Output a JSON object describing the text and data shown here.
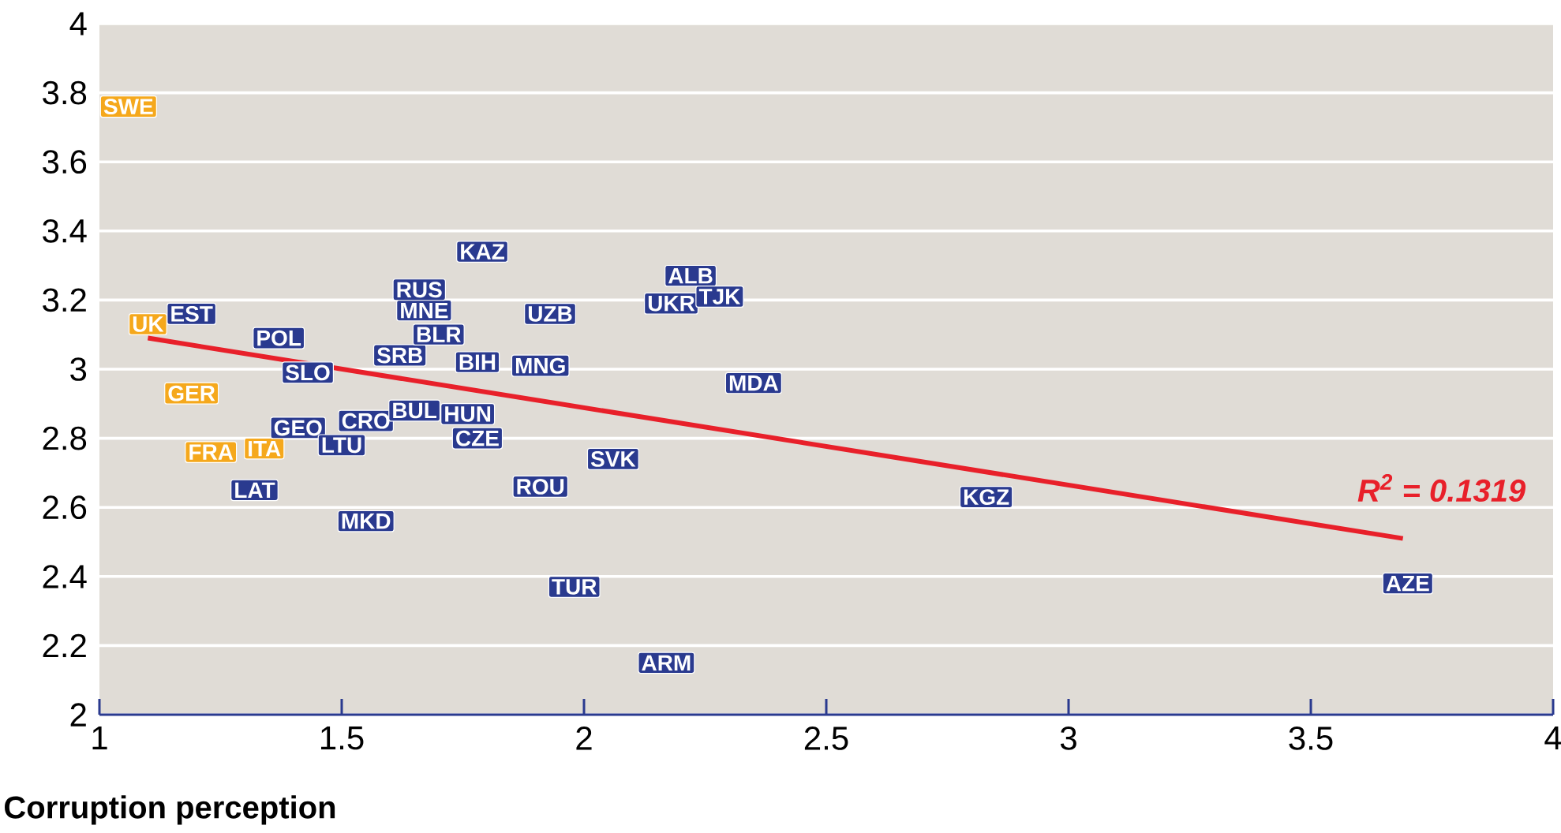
{
  "chart_data": {
    "type": "scatter",
    "xlabel": "Corruption perception",
    "xlim": [
      1,
      4
    ],
    "ylim": [
      2,
      4
    ],
    "xticks": [
      1,
      1.5,
      2,
      2.5,
      3,
      3.5,
      4
    ],
    "yticks": [
      2,
      2.2,
      2.4,
      2.6,
      2.8,
      3,
      3.2,
      3.4,
      3.6,
      3.8,
      4
    ],
    "grid": "y",
    "series": [
      {
        "color": "#f5a81c",
        "x": [
          1.06,
          1.1,
          1.19,
          1.23,
          1.34
        ],
        "values": [
          3.76,
          3.13,
          2.93,
          2.76,
          2.77
        ],
        "value_labels": [
          "SWE",
          "UK",
          "GER",
          "FRA",
          "ITA"
        ]
      },
      {
        "color": "#2a3a8f",
        "x": [
          1.19,
          1.37,
          1.43,
          1.41,
          1.55,
          1.5,
          1.32,
          1.55,
          1.65,
          1.76,
          1.78,
          1.62,
          1.78,
          1.7,
          1.67,
          1.66,
          1.79,
          1.93,
          1.91,
          1.91,
          2.06,
          1.98,
          2.17,
          2.22,
          2.18,
          2.28,
          2.35,
          2.83,
          3.7
        ],
        "values": [
          3.16,
          3.09,
          2.99,
          2.83,
          2.85,
          2.78,
          2.65,
          2.56,
          2.88,
          2.87,
          2.8,
          3.04,
          3.02,
          3.1,
          3.17,
          3.23,
          3.34,
          3.16,
          3.01,
          2.66,
          2.74,
          2.37,
          2.15,
          3.27,
          3.19,
          3.21,
          2.96,
          2.63,
          2.38
        ],
        "value_labels": [
          "EST",
          "POL",
          "SLO",
          "GEO",
          "CRO",
          "LTU",
          "LAT",
          "MKD",
          "BUL",
          "HUN",
          "CZE",
          "SRB",
          "BIH",
          "BLR",
          "MNE",
          "RUS",
          "KAZ",
          "UZB",
          "MNG",
          "ROU",
          "SVK",
          "TUR",
          "ARM",
          "ALB",
          "UKR",
          "TJK",
          "MDA",
          "KGZ",
          "AZE"
        ]
      },
      {
        "type": "line",
        "color": "#e8202a",
        "x": [
          1.1,
          3.69
        ],
        "values": [
          3.09,
          2.51
        ]
      }
    ],
    "annotations": [
      "*R$^{2}$ = 0.1319*"
    ]
  }
}
